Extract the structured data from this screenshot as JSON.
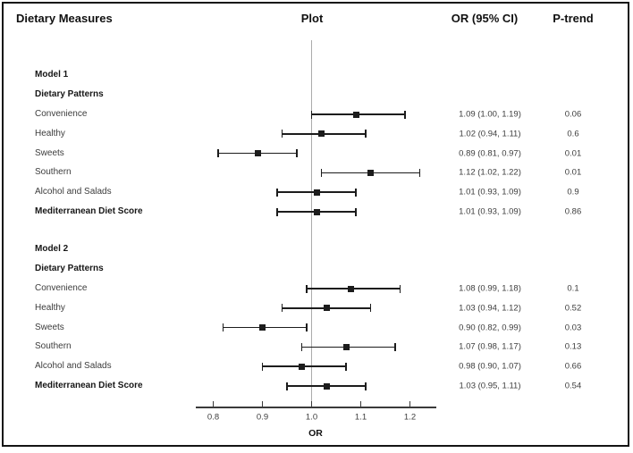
{
  "header": {
    "dietary_measures": "Dietary Measures",
    "plot": "Plot",
    "or_ci": "OR (95% CI)",
    "p_trend": "P-trend"
  },
  "axis": {
    "label": "OR",
    "tick_labels": [
      "0.8",
      "0.9",
      "1.0",
      "1.1",
      "1.2"
    ]
  },
  "chart_data": {
    "type": "forest",
    "title": "",
    "xlabel": "OR",
    "xlim": [
      0.76,
      1.25
    ],
    "reference_line": 1.0,
    "x_ticks": [
      0.8,
      0.9,
      1.0,
      1.1,
      1.2
    ],
    "columns": [
      "Dietary Measures",
      "Plot",
      "OR (95% CI)",
      "P-trend"
    ],
    "groups": [
      {
        "model": "Model 1",
        "heading": "Dietary Patterns",
        "rows": [
          {
            "label": "Convenience",
            "bold": false,
            "or": 1.09,
            "ci_low": 1.0,
            "ci_high": 1.19,
            "or_text": "1.09 (1.00, 1.19)",
            "p_trend": "0.06"
          },
          {
            "label": "Healthy",
            "bold": false,
            "or": 1.02,
            "ci_low": 0.94,
            "ci_high": 1.11,
            "or_text": "1.02 (0.94, 1.11)",
            "p_trend": "0.6"
          },
          {
            "label": "Sweets",
            "bold": false,
            "or": 0.89,
            "ci_low": 0.81,
            "ci_high": 0.97,
            "or_text": "0.89 (0.81, 0.97)",
            "p_trend": "0.01"
          },
          {
            "label": "Southern",
            "bold": false,
            "or": 1.12,
            "ci_low": 1.02,
            "ci_high": 1.22,
            "or_text": "1.12 (1.02, 1.22)",
            "p_trend": "0.01"
          },
          {
            "label": "Alcohol and Salads",
            "bold": false,
            "or": 1.01,
            "ci_low": 0.93,
            "ci_high": 1.09,
            "or_text": "1.01 (0.93, 1.09)",
            "p_trend": "0.9"
          },
          {
            "label": "Mediterranean Diet Score",
            "bold": true,
            "or": 1.01,
            "ci_low": 0.93,
            "ci_high": 1.09,
            "or_text": "1.01 (0.93, 1.09)",
            "p_trend": "0.86"
          }
        ]
      },
      {
        "model": "Model 2",
        "heading": "Dietary Patterns",
        "rows": [
          {
            "label": "Convenience",
            "bold": false,
            "or": 1.08,
            "ci_low": 0.99,
            "ci_high": 1.18,
            "or_text": "1.08 (0.99, 1.18)",
            "p_trend": "0.1"
          },
          {
            "label": "Healthy",
            "bold": false,
            "or": 1.03,
            "ci_low": 0.94,
            "ci_high": 1.12,
            "or_text": "1.03 (0.94, 1.12)",
            "p_trend": "0.52"
          },
          {
            "label": "Sweets",
            "bold": false,
            "or": 0.9,
            "ci_low": 0.82,
            "ci_high": 0.99,
            "or_text": "0.90 (0.82, 0.99)",
            "p_trend": "0.03"
          },
          {
            "label": "Southern",
            "bold": false,
            "or": 1.07,
            "ci_low": 0.98,
            "ci_high": 1.17,
            "or_text": "1.07 (0.98, 1.17)",
            "p_trend": "0.13"
          },
          {
            "label": "Alcohol and Salads",
            "bold": false,
            "or": 0.98,
            "ci_low": 0.9,
            "ci_high": 1.07,
            "or_text": "0.98 (0.90, 1.07)",
            "p_trend": "0.66"
          },
          {
            "label": "Mediterranean Diet Score",
            "bold": true,
            "or": 1.03,
            "ci_low": 0.95,
            "ci_high": 1.11,
            "or_text": "1.03 (0.95, 1.11)",
            "p_trend": "0.54"
          }
        ]
      }
    ]
  }
}
